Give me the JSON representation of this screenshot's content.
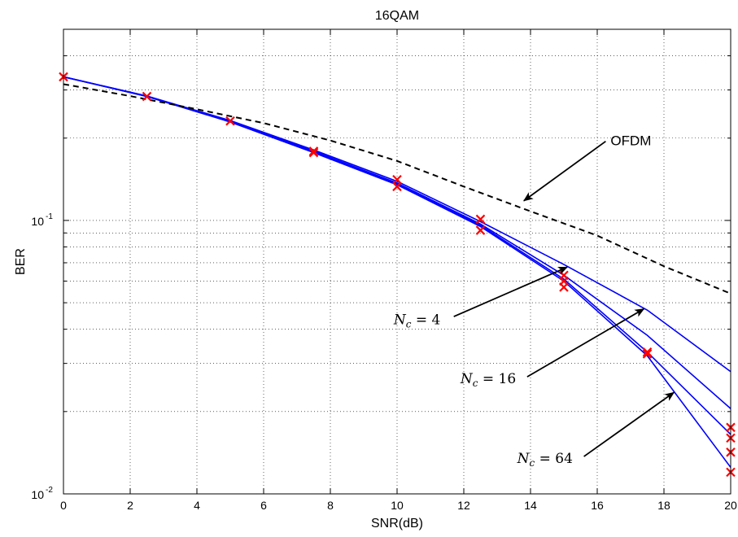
{
  "chart_data": {
    "type": "line",
    "title": "16QAM",
    "xlabel": "SNR(dB)",
    "ylabel": "BER",
    "x_scale": "linear",
    "y_scale": "log",
    "xlim": [
      0,
      20
    ],
    "ylim": [
      0.01,
      0.5
    ],
    "x_ticks": [
      "0",
      "2",
      "4",
      "6",
      "8",
      "10",
      "12",
      "14",
      "16",
      "18",
      "20"
    ],
    "y_tick_base": "10",
    "y_tick_exponents": [
      "-2",
      "-1"
    ],
    "grid": true,
    "colors": {
      "series": "#0000ff",
      "reference": "#000000",
      "markers": "#ff0000"
    },
    "series": [
      {
        "x": [
          0,
          2.5,
          5,
          7.5,
          10,
          12.5,
          15,
          17.5,
          20
        ],
        "y": [
          0.335,
          0.285,
          0.232,
          0.181,
          0.139,
          0.099,
          0.069,
          0.047,
          0.028
        ]
      },
      {
        "x": [
          0,
          2.5,
          5,
          7.5,
          10,
          12.5,
          15,
          17.5,
          20
        ],
        "y": [
          0.335,
          0.285,
          0.231,
          0.179,
          0.137,
          0.097,
          0.063,
          0.038,
          0.0205
        ]
      },
      {
        "x": [
          0,
          2.5,
          5,
          7.5,
          10,
          12.5,
          15,
          17.5,
          20
        ],
        "y": [
          0.335,
          0.284,
          0.23,
          0.178,
          0.136,
          0.096,
          0.061,
          0.033,
          0.0165
        ]
      },
      {
        "x": [
          0,
          2.5,
          5,
          7.5,
          10,
          12.5,
          15,
          17.5,
          20
        ],
        "y": [
          0.335,
          0.284,
          0.229,
          0.177,
          0.135,
          0.095,
          0.06,
          0.032,
          0.0125
        ]
      },
      {
        "x": [
          0,
          2,
          4,
          6,
          8,
          10,
          12,
          14,
          16,
          18,
          20
        ],
        "y": [
          0.315,
          0.285,
          0.255,
          0.227,
          0.196,
          0.165,
          0.133,
          0.108,
          0.088,
          0.068,
          0.054
        ],
        "dashed": true
      }
    ],
    "markers": [
      {
        "x": 0,
        "y": 0.335
      },
      {
        "x": 2.5,
        "y": 0.284
      },
      {
        "x": 5,
        "y": 0.231
      },
      {
        "x": 7.5,
        "y": 0.179
      },
      {
        "x": 7.5,
        "y": 0.177
      },
      {
        "x": 10,
        "y": 0.141
      },
      {
        "x": 10,
        "y": 0.133
      },
      {
        "x": 12.5,
        "y": 0.101
      },
      {
        "x": 12.5,
        "y": 0.092
      },
      {
        "x": 15,
        "y": 0.063
      },
      {
        "x": 15,
        "y": 0.06
      },
      {
        "x": 15,
        "y": 0.057
      },
      {
        "x": 17.5,
        "y": 0.033
      },
      {
        "x": 17.5,
        "y": 0.0325
      },
      {
        "x": 20,
        "y": 0.0175
      },
      {
        "x": 20,
        "y": 0.016
      },
      {
        "x": 20,
        "y": 0.0142
      },
      {
        "x": 20,
        "y": 0.012
      }
    ],
    "annotations": [
      {
        "label": "OFDM",
        "text_x": 16.4,
        "text_y": 0.196,
        "arrow_to": [
          13.8,
          0.118
        ]
      },
      {
        "math_var": "N",
        "math_sub": "c",
        "math_rest": " = 4",
        "text_x": 9.9,
        "text_y": 0.0435,
        "arrow_from": [
          11.7,
          0.0445
        ],
        "arrow_to": [
          15.1,
          0.0675
        ]
      },
      {
        "math_var": "N",
        "math_sub": "c",
        "math_rest": " = 16",
        "text_x": 11.9,
        "text_y": 0.0265,
        "arrow_from": [
          13.9,
          0.0268
        ],
        "arrow_to": [
          17.4,
          0.0475
        ]
      },
      {
        "math_var": "N",
        "math_sub": "c",
        "math_rest": " = 64",
        "text_x": 13.6,
        "text_y": 0.0135,
        "arrow_from": [
          15.6,
          0.0137
        ],
        "arrow_to": [
          18.3,
          0.0235
        ]
      }
    ]
  }
}
